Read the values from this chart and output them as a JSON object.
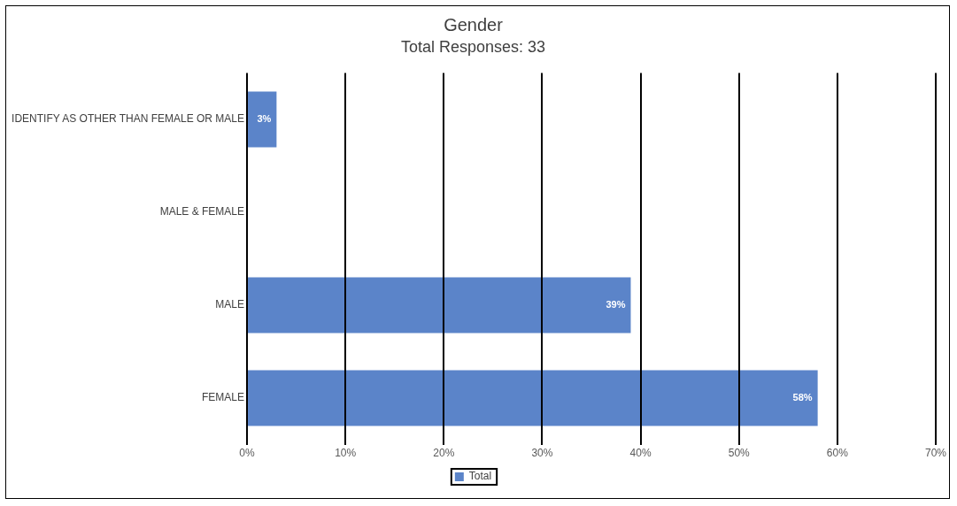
{
  "chart_data": {
    "type": "bar",
    "orientation": "horizontal",
    "title": "Gender",
    "subtitle": "Total Responses: 33",
    "categories": [
      "IDENTIFY AS OTHER THAN FEMALE OR MALE",
      "MALE & FEMALE",
      "MALE",
      "FEMALE"
    ],
    "series": [
      {
        "name": "Total",
        "color": "#5b84c9",
        "values": [
          3,
          0,
          39,
          58
        ],
        "value_labels": [
          "3%",
          null,
          "39%",
          "58%"
        ]
      }
    ],
    "xlim": [
      0,
      70
    ],
    "xticks": [
      {
        "value": 0,
        "label": "0%"
      },
      {
        "value": 10,
        "label": "10%"
      },
      {
        "value": 20,
        "label": "20%"
      },
      {
        "value": 30,
        "label": "30%"
      },
      {
        "value": 40,
        "label": "40%"
      },
      {
        "value": 50,
        "label": "50%"
      },
      {
        "value": 60,
        "label": "60%"
      },
      {
        "value": 70,
        "label": "70%"
      }
    ],
    "grid": "x",
    "legend": "bottom"
  }
}
